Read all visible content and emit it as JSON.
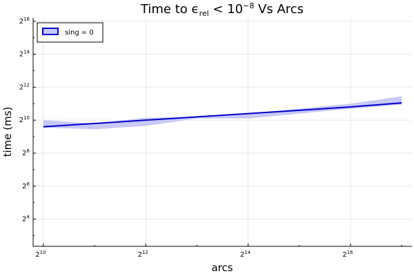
{
  "chart_data": {
    "type": "line",
    "title_main": "Time to ϵ",
    "title_sub": "rel",
    "title_rest": " < 10",
    "title_sup": "−8",
    "title_end": " Vs Arcs",
    "xlabel": "arcs",
    "ylabel": "time (ms)",
    "x_scale": "log2",
    "y_scale": "log2",
    "xlim_log2": [
      9.8,
      17.2
    ],
    "ylim_log2": [
      2.35,
      16.2
    ],
    "x_ticks": [
      {
        "base": "2",
        "exp": "10",
        "log2": 10
      },
      {
        "base": "2",
        "exp": "12",
        "log2": 12
      },
      {
        "base": "2",
        "exp": "14",
        "log2": 14
      },
      {
        "base": "2",
        "exp": "16",
        "log2": 16
      }
    ],
    "x_minor_log2": [
      11,
      13,
      15,
      17
    ],
    "y_ticks": [
      {
        "base": "2",
        "exp": "4",
        "log2": 4
      },
      {
        "base": "2",
        "exp": "6",
        "log2": 6
      },
      {
        "base": "2",
        "exp": "8",
        "log2": 8
      },
      {
        "base": "2",
        "exp": "10",
        "log2": 10
      },
      {
        "base": "2",
        "exp": "12",
        "log2": 12
      },
      {
        "base": "2",
        "exp": "14",
        "log2": 14
      },
      {
        "base": "2",
        "exp": "16",
        "log2": 16
      }
    ],
    "y_minor_log2": [
      3,
      5,
      7,
      9,
      11,
      13,
      15
    ],
    "grid": true,
    "legend_position": "top-left",
    "series": [
      {
        "name": "sing = 0",
        "color": "#0000cc",
        "band_color": "#c8c8f8",
        "x_log2": [
          10,
          11,
          12,
          13,
          14,
          15,
          16,
          17
        ],
        "y_log2": [
          9.6,
          9.8,
          10.0,
          10.2,
          10.4,
          10.6,
          10.8,
          11.05
        ],
        "band_lower_log2": [
          9.55,
          9.45,
          9.65,
          10.1,
          10.1,
          10.4,
          10.7,
          10.95
        ],
        "band_upper_log2": [
          10.0,
          9.8,
          10.15,
          10.2,
          10.4,
          10.7,
          11.0,
          11.45
        ]
      }
    ]
  }
}
